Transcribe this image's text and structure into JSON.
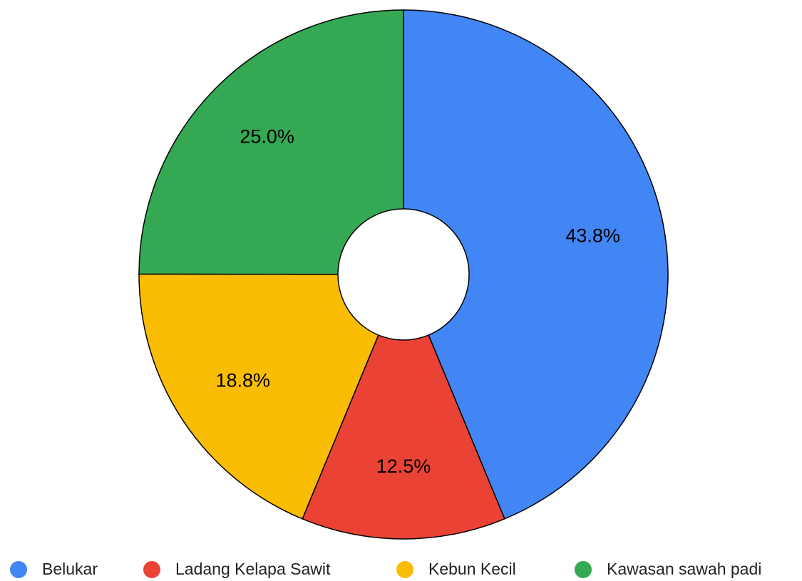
{
  "chart_data": {
    "type": "pie",
    "categories": [
      "Belukar",
      "Ladang Kelapa Sawit",
      "Kebun Kecil",
      "Kawasan sawah padi"
    ],
    "values": [
      43.8,
      12.5,
      18.8,
      25.0
    ],
    "value_labels": [
      "43.8%",
      "12.5%",
      "18.8%",
      "25.0%"
    ],
    "colors": [
      "#4285f4",
      "#ea4335",
      "#fbbc04",
      "#34a853"
    ],
    "donut": true,
    "legend": "bottom"
  }
}
